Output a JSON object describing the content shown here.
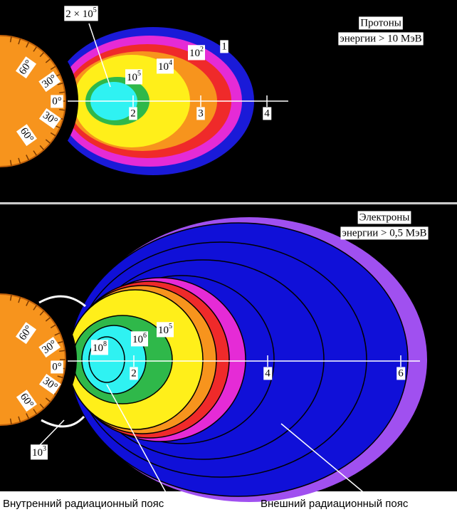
{
  "top_panel": {
    "title": [
      "Протоны",
      "энергии > 10 МэВ"
    ],
    "contour_labels": [
      {
        "base": "2 × 10",
        "exp": "5"
      },
      "1",
      {
        "base": "10",
        "exp": "2"
      },
      {
        "base": "10",
        "exp": "4"
      },
      {
        "base": "10",
        "exp": "5"
      }
    ],
    "latitudes": [
      "60°",
      "30°",
      "0°",
      "30°",
      "60°"
    ],
    "l_shell_labels": [
      "2",
      "3",
      "4"
    ]
  },
  "bottom_panel": {
    "title": [
      "Электроны",
      "энергии > 0,5 МэВ"
    ],
    "contour_labels": [
      {
        "base": "10",
        "exp": "5"
      },
      {
        "base": "10",
        "exp": "6"
      },
      {
        "base": "10",
        "exp": "8"
      },
      {
        "base": "10",
        "exp": "3"
      }
    ],
    "latitudes": [
      "60°",
      "30°",
      "0°",
      "30°",
      "60°"
    ],
    "l_shell_labels": [
      "2",
      "4",
      "6"
    ]
  },
  "captions": [
    "Внутренний радиационный пояс",
    "Внешний радиационный пояс"
  ]
}
